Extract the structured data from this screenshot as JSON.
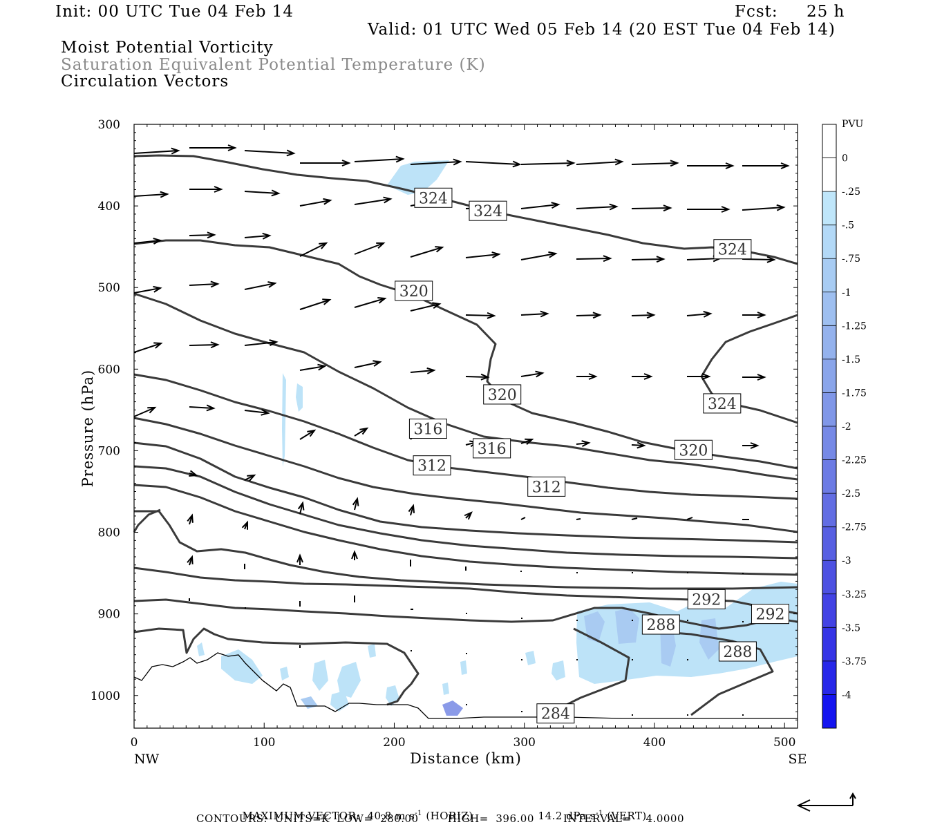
{
  "header": {
    "init": "Init: 00 UTC Tue 04 Feb 14",
    "fcst_label": "Fcst:",
    "fcst_value": "25 h",
    "valid": "Valid: 01 UTC Wed 05 Feb 14 (20 EST Tue 04 Feb 14)",
    "field1": "Moist Potential Vorticity",
    "field2": "Saturation Equivalent Potential Temperature (K)",
    "field3": "Circulation Vectors"
  },
  "footer": {
    "max_vector_label": "MAXIMUM VECTOR:",
    "horiz_value": "40.8 m s",
    "horiz_suffix": "(HORIZ)",
    "vert_value": "14.2 dPa s",
    "vert_suffix": "(VERT)",
    "exponent": "-1",
    "contours": "CONTOURS:  UNITS=K  LOW=  280.00        HIGH=  396.00        INTERVAL=    4.0000"
  },
  "colors": {
    "contour": "#3a3a3a",
    "terrain": "#000000",
    "vector": "#000000"
  },
  "chart_data": {
    "type": "cross-section",
    "xlabel": "Distance (km)",
    "ylabel": "Pressure (hPa)",
    "xlim": [
      0,
      510
    ],
    "ylim": [
      1040,
      300
    ],
    "x_ticks": [
      "0",
      "100",
      "200",
      "300",
      "400",
      "500"
    ],
    "y_ticks": [
      "300",
      "400",
      "500",
      "600",
      "700",
      "800",
      "900",
      "1000"
    ],
    "x_end_labels": [
      "NW",
      "SE"
    ],
    "colorbar": {
      "title": "PVU",
      "levels": [
        "0",
        "-.25",
        "-.5",
        "-.75",
        "-1",
        "-1.25",
        "-1.5",
        "-1.75",
        "-2",
        "-2.25",
        "-2.5",
        "-2.75",
        "-3",
        "-3.25",
        "-3.5",
        "-3.75",
        "-4"
      ],
      "colors": [
        "#ffffff",
        "#ffffff",
        "#bfe6fa",
        "#b3d9f7",
        "#a8ccf3",
        "#9ebff0",
        "#94b2ed",
        "#8aa5ea",
        "#8097e8",
        "#7689e6",
        "#6c7be4",
        "#626de3",
        "#575fe2",
        "#4d51e2",
        "#4242e4",
        "#3534e6",
        "#2727e9",
        "#1414f0"
      ]
    },
    "contour_labels": [
      {
        "text": "324",
        "x": 230,
        "p": 390
      },
      {
        "text": "324",
        "x": 272,
        "p": 406
      },
      {
        "text": "324",
        "x": 460,
        "p": 453
      },
      {
        "text": "320",
        "x": 215,
        "p": 504
      },
      {
        "text": "320",
        "x": 283,
        "p": 631
      },
      {
        "text": "324",
        "x": 452,
        "p": 642
      },
      {
        "text": "320",
        "x": 430,
        "p": 699
      },
      {
        "text": "316",
        "x": 226,
        "p": 673
      },
      {
        "text": "316",
        "x": 275,
        "p": 697
      },
      {
        "text": "312",
        "x": 229,
        "p": 718
      },
      {
        "text": "312",
        "x": 317,
        "p": 744
      },
      {
        "text": "292",
        "x": 440,
        "p": 882
      },
      {
        "text": "292",
        "x": 489,
        "p": 900
      },
      {
        "text": "288",
        "x": 405,
        "p": 913
      },
      {
        "text": "288",
        "x": 464,
        "p": 946
      },
      {
        "text": "284",
        "x": 324,
        "p": 1022
      }
    ]
  }
}
